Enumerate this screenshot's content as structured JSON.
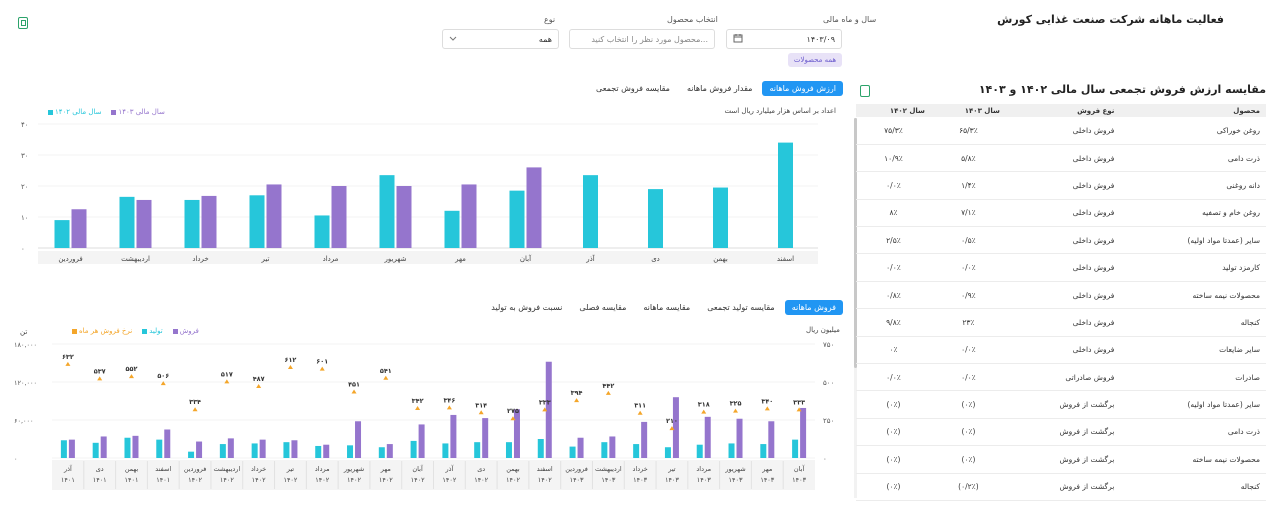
{
  "page": {
    "title": "فعالیت ماهانه شرکت صنعت غذایی کورش"
  },
  "filters": {
    "date_label": "سال و ماه مالی",
    "date_value": "۱۴۰۳/۰۹",
    "product_label": "انتخاب محصول",
    "product_placeholder": "محصول مورد نظر را انتخاب کنید...",
    "type_label": "نوع",
    "type_value": "همه",
    "chip_label": "همه محصولات"
  },
  "top_chart": {
    "tabs": [
      "ارزش فروش ماهانه",
      "مقدار فروش ماهانه",
      "مقایسه فروش تجمعی"
    ],
    "active_tab": 0,
    "note": "اعداد بر اساس هزار میلیارد ریال است"
  },
  "bottom_chart": {
    "tabs": [
      "فروش ماهانه",
      "مقایسه تولید تجمعی",
      "مقایسه ماهانه",
      "مقایسه فصلی",
      "نسبت فروش به تولید"
    ],
    "active_tab": 0,
    "left_unit": "تن",
    "right_unit": "میلیون ریال"
  },
  "table": {
    "title": "مقایسه ارزش فروش تجمعی سال مالی ۱۴۰۲ و ۱۴۰۳",
    "headers": [
      "محصول",
      "نوع فروش",
      "سال ۱۴۰۳",
      "سال ۱۴۰۲"
    ],
    "rows": [
      [
        "روغن خوراکی",
        "فروش داخلی",
        "۶۵/۳٪",
        "۷۵/۳٪"
      ],
      [
        "ذرت دامی",
        "فروش داخلی",
        "۵/۸٪",
        "۱۰/۹٪"
      ],
      [
        "دانه روغنی",
        "فروش داخلی",
        "۱/۴٪",
        "۰/۰٪"
      ],
      [
        "روغن خام و تصفیه",
        "فروش داخلی",
        "۷/۱٪",
        "۸٪"
      ],
      [
        "سایر (عمدتا مواد اولیه)",
        "فروش داخلی",
        "۰/۵٪",
        "۲/۵٪"
      ],
      [
        "کارمزد تولید",
        "فروش داخلی",
        "۰/۰٪",
        "۰/۰٪"
      ],
      [
        "محصولات نیمه ساخته",
        "فروش داخلی",
        "۰/۹٪",
        "۰/۸٪"
      ],
      [
        "کنجاله",
        "فروش داخلی",
        "۲۳٪",
        "۹/۸٪"
      ],
      [
        "سایر ضایعات",
        "فروش داخلی",
        "۰/۰٪",
        "۰٪"
      ],
      [
        "صادرات",
        "فروش صادراتی",
        "۰/۰٪",
        "۰/۰٪"
      ],
      [
        "سایر (عمدتا مواد اولیه)",
        "برگشت از فروش",
        "(۰٪)",
        "(۰٪)"
      ],
      [
        "ذرت دامی",
        "برگشت از فروش",
        "(۰٪)",
        "(۰٪)"
      ],
      [
        "محصولات نیمه ساخته",
        "برگشت از فروش",
        "(۰٪)",
        "(۰٪)"
      ],
      [
        "کنجاله",
        "برگشت از فروش",
        "(۰/۲٪)",
        "(۰٪)"
      ]
    ]
  },
  "colors": {
    "teal": "#26c6da",
    "purple": "#9575cd",
    "orange": "#f4a62a",
    "blue_tab": "#2196f3",
    "green_icon": "#2ca36b"
  },
  "chart_data": [
    {
      "type": "bar",
      "title": "",
      "categories": [
        "اسفند",
        "بهمن",
        "دی",
        "آذر",
        "آبان",
        "مهر",
        "شهریور",
        "مرداد",
        "تیر",
        "خرداد",
        "اردیبهشت",
        "فروردین"
      ],
      "series": [
        {
          "name": "سال مالی ۱۴۰۳",
          "color": "#26c6da",
          "values": [
            34,
            19.5,
            19,
            23.5,
            18.5,
            12,
            23.5,
            10.5,
            17,
            15.5,
            16.5,
            9
          ]
        },
        {
          "name": "سال مالی ۱۴۰۲",
          "color": "#9575cd",
          "values": [
            null,
            null,
            null,
            null,
            26,
            20.5,
            20,
            20,
            20.5,
            16.8,
            15.5,
            12.5
          ]
        }
      ],
      "yticks": [
        "۴۰",
        "۳۰",
        "۲۰",
        "۱۰",
        "۰"
      ],
      "ylim": [
        0,
        40
      ],
      "legend_position": "top-left"
    },
    {
      "type": "bar",
      "title": "",
      "categories": [
        [
          "آذر",
          "۱۴۰۱"
        ],
        [
          "دی",
          "۱۴۰۱"
        ],
        [
          "بهمن",
          "۱۴۰۱"
        ],
        [
          "اسفند",
          "۱۴۰۱"
        ],
        [
          "فروردین",
          "۱۴۰۲"
        ],
        [
          "اردیبهشت",
          "۱۴۰۲"
        ],
        [
          "خرداد",
          "۱۴۰۲"
        ],
        [
          "تیر",
          "۱۴۰۲"
        ],
        [
          "مرداد",
          "۱۴۰۲"
        ],
        [
          "شهریور",
          "۱۴۰۲"
        ],
        [
          "مهر",
          "۱۴۰۲"
        ],
        [
          "آبان",
          "۱۴۰۲"
        ],
        [
          "آذر",
          "۱۴۰۲"
        ],
        [
          "دی",
          "۱۴۰۲"
        ],
        [
          "بهمن",
          "۱۴۰۲"
        ],
        [
          "اسفند",
          "۱۴۰۲"
        ],
        [
          "فروردین",
          "۱۴۰۳"
        ],
        [
          "اردیبهشت",
          "۱۴۰۳"
        ],
        [
          "خرداد",
          "۱۴۰۳"
        ],
        [
          "تیر",
          "۱۴۰۳"
        ],
        [
          "مرداد",
          "۱۴۰۳"
        ],
        [
          "شهریور",
          "۱۴۰۳"
        ],
        [
          "مهر",
          "۱۴۰۳"
        ],
        [
          "آبان",
          "۱۴۰۳"
        ]
      ],
      "series": [
        {
          "name": "فروش",
          "color": "#26c6da",
          "values": [
            28000,
            24000,
            32000,
            29000,
            10000,
            22000,
            23000,
            25000,
            19000,
            20000,
            17000,
            27000,
            23000,
            25000,
            25000,
            30000,
            18000,
            25000,
            22000,
            17000,
            21000,
            23000,
            22000,
            29000
          ]
        },
        {
          "name": "تولید",
          "color": "#9575cd",
          "values": [
            29000,
            34000,
            35000,
            45000,
            26000,
            31000,
            29000,
            28000,
            21000,
            58000,
            22000,
            53000,
            68000,
            63000,
            77000,
            152000,
            32000,
            34000,
            57000,
            96000,
            65000,
            62000,
            58000,
            79000
          ]
        },
        {
          "name": "نرخ فروش هر ماه",
          "color": "#f4a62a",
          "values": [
            632,
            537,
            552,
            506,
            334,
            517,
            487,
            612,
            601,
            451,
            541,
            342,
            346,
            314,
            275,
            333,
            394,
            442,
            311,
            210,
            318,
            325,
            340,
            333
          ]
        }
      ],
      "labels": [
        "۶۳۲",
        "۵۳۷",
        "۵۵۲",
        "۵۰۶",
        "۳۳۴",
        "۵۱۷",
        "۴۸۷",
        "۶۱۲",
        "۶۰۱",
        "۴۵۱",
        "۵۴۱",
        "۳۴۲",
        "۳۴۶",
        "۳۱۴",
        "۲۷۵",
        "۳۳۳",
        "۳۹۴",
        "۴۴۲",
        "۳۱۱",
        "۲۱۰",
        "۳۱۸",
        "۳۲۵",
        "۳۴۰",
        "۳۳۳"
      ],
      "left_ticks": [
        "۱۸۰,۰۰۰",
        "۱۲۰,۰۰۰",
        "۶۰,۰۰۰",
        "۰"
      ],
      "right_ticks": [
        "۷۵۰",
        "۵۰۰",
        "۲۵۰",
        "۰"
      ],
      "ylim_left": [
        0,
        180000
      ],
      "ylim_right": [
        0,
        750
      ],
      "legend_position": "top-left"
    }
  ]
}
